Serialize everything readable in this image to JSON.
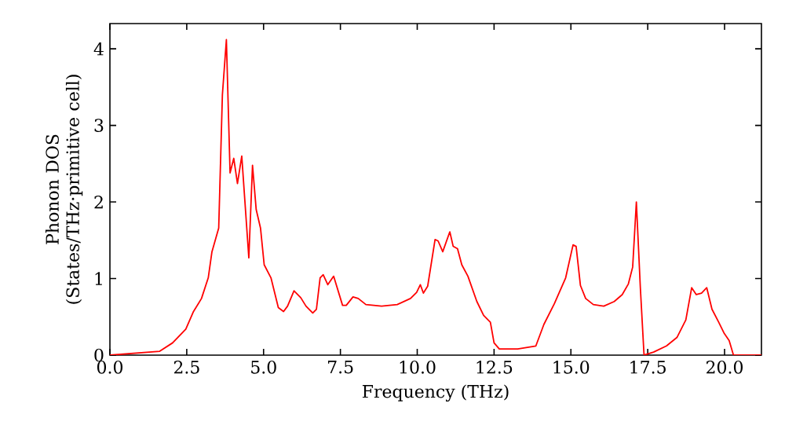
{
  "chart_data": {
    "type": "line",
    "xlabel": "Frequency (THz)",
    "ylabel": "Phonon DOS (States/THz·primitive cell)",
    "xlim": [
      0,
      21.2
    ],
    "ylim": [
      0,
      4.33
    ],
    "xticks": [
      {
        "value": 0,
        "label": "0.0"
      },
      {
        "value": 2.5,
        "label": "2.5"
      },
      {
        "value": 5,
        "label": "5.0"
      },
      {
        "value": 7.5,
        "label": "7.5"
      },
      {
        "value": 10,
        "label": "10.0"
      },
      {
        "value": 12.5,
        "label": "12.5"
      },
      {
        "value": 15,
        "label": "15.0"
      },
      {
        "value": 17.5,
        "label": "17.5"
      },
      {
        "value": 20,
        "label": "20.0"
      }
    ],
    "yticks": [
      0,
      1,
      2,
      3,
      4
    ],
    "marker": "none",
    "line_style": "solid",
    "series": [
      {
        "color": "#ff0000",
        "x": [
          0,
          1.62,
          2.04,
          2.47,
          2.72,
          2.98,
          3.2,
          3.32,
          3.54,
          3.66,
          3.79,
          3.91,
          4.03,
          4.15,
          4.29,
          4.52,
          4.64,
          4.76,
          4.9,
          5.02,
          5.24,
          5.48,
          5.65,
          5.78,
          5.99,
          6.21,
          6.38,
          6.6,
          6.72,
          6.84,
          6.94,
          7.09,
          7.28,
          7.57,
          7.69,
          7.91,
          8.08,
          8.33,
          8.84,
          9.35,
          9.78,
          9.98,
          10.1,
          10.2,
          10.34,
          10.58,
          10.68,
          10.83,
          11.06,
          11.17,
          11.31,
          11.45,
          11.65,
          11.94,
          12.16,
          12.38,
          12.5,
          12.67,
          13.27,
          13.86,
          14.12,
          14.46,
          14.83,
          15.07,
          15.17,
          15.31,
          15.48,
          15.73,
          16.07,
          16.41,
          16.67,
          16.87,
          17.01,
          17.13,
          17.26,
          17.38,
          17.69,
          18.11,
          18.45,
          18.74,
          18.93,
          19.08,
          19.25,
          19.42,
          19.59,
          19.81,
          19.98,
          20.15,
          20.29,
          21.2
        ],
        "values": [
          0,
          0.05,
          0.16,
          0.34,
          0.57,
          0.74,
          1.01,
          1.35,
          1.66,
          3.4,
          4.12,
          2.38,
          2.57,
          2.24,
          2.6,
          1.27,
          2.48,
          1.9,
          1.66,
          1.18,
          1.01,
          0.62,
          0.57,
          0.64,
          0.84,
          0.75,
          0.64,
          0.55,
          0.6,
          1.01,
          1.05,
          0.92,
          1.03,
          0.65,
          0.65,
          0.76,
          0.74,
          0.66,
          0.64,
          0.66,
          0.74,
          0.82,
          0.92,
          0.81,
          0.9,
          1.51,
          1.49,
          1.35,
          1.61,
          1.42,
          1.39,
          1.18,
          1.03,
          0.7,
          0.52,
          0.43,
          0.16,
          0.08,
          0.08,
          0.12,
          0.4,
          0.67,
          1.01,
          1.44,
          1.42,
          0.91,
          0.74,
          0.66,
          0.64,
          0.7,
          0.79,
          0.93,
          1.15,
          2.0,
          0.88,
          0,
          0.04,
          0.12,
          0.23,
          0.46,
          0.88,
          0.79,
          0.81,
          0.88,
          0.6,
          0.43,
          0.29,
          0.19,
          0,
          0
        ]
      }
    ]
  }
}
